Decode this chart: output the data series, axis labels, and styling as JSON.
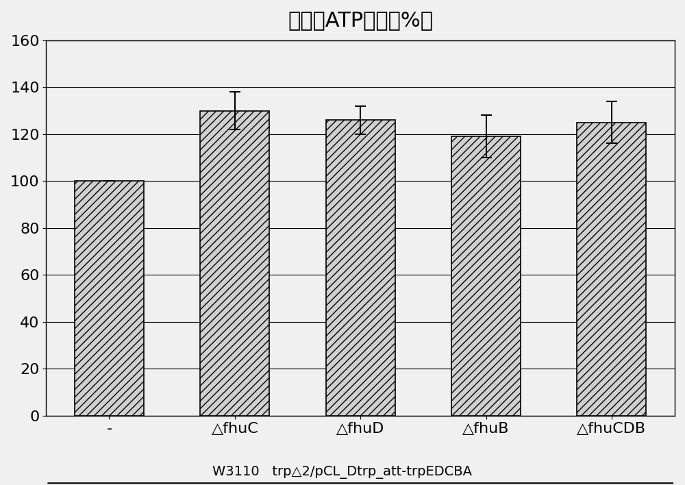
{
  "title": "细胞内ATP水平（%）",
  "categories": [
    "-",
    "△fhuC",
    "△fhuD",
    "△fhuB",
    "△fhuCDB"
  ],
  "values": [
    100,
    130,
    126,
    119,
    125
  ],
  "errors": [
    0,
    8,
    6,
    9,
    9
  ],
  "xlabel_bottom": "W3110   trp△2/pCL_Dtrp_att-trpEDCBA",
  "ylim": [
    0,
    160
  ],
  "yticks": [
    0,
    20,
    40,
    60,
    80,
    100,
    120,
    140,
    160
  ],
  "bar_color": "#d0d0d0",
  "hatch": "///",
  "bar_edge_color": "#000000",
  "background_color": "#f0f0f0",
  "title_fontsize": 22,
  "tick_fontsize": 16,
  "xlabel_fontsize": 14,
  "bar_width": 0.55
}
